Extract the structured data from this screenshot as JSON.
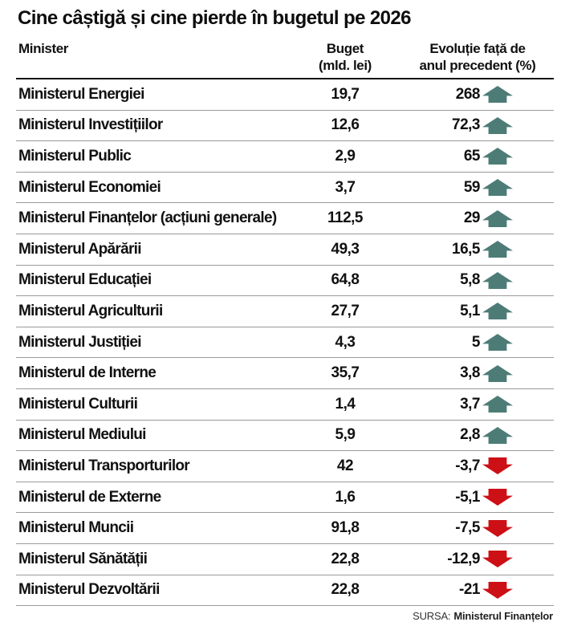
{
  "title": "Cine câștigă și cine pierde în bugetul pe 2026",
  "table": {
    "columns": {
      "minister": "Minister",
      "budget_line1": "Buget",
      "budget_line2": "(mld. lei)",
      "evolution_line1": "Evoluție față de",
      "evolution_line2": "anul precedent (%)"
    },
    "rows": [
      {
        "minister": "Ministerul Energiei",
        "budget": "19,7",
        "evolution": "268",
        "trend": "up"
      },
      {
        "minister": "Ministerul Investițiilor",
        "budget": "12,6",
        "evolution": "72,3",
        "trend": "up"
      },
      {
        "minister": "Ministerul Public",
        "budget": "2,9",
        "evolution": "65",
        "trend": "up"
      },
      {
        "minister": "Ministerul Economiei",
        "budget": "3,7",
        "evolution": "59",
        "trend": "up"
      },
      {
        "minister": "Ministerul Finanțelor (acțiuni generale)",
        "budget": "112,5",
        "evolution": "29",
        "trend": "up"
      },
      {
        "minister": "Ministerul Apărării",
        "budget": "49,3",
        "evolution": "16,5",
        "trend": "up"
      },
      {
        "minister": "Ministerul Educației",
        "budget": "64,8",
        "evolution": "5,8",
        "trend": "up"
      },
      {
        "minister": "Ministerul Agriculturii",
        "budget": "27,7",
        "evolution": "5,1",
        "trend": "up"
      },
      {
        "minister": "Ministerul Justiției",
        "budget": "4,3",
        "evolution": "5",
        "trend": "up"
      },
      {
        "minister": "Ministerul de Interne",
        "budget": "35,7",
        "evolution": "3,8",
        "trend": "up"
      },
      {
        "minister": "Ministerul Culturii",
        "budget": "1,4",
        "evolution": "3,7",
        "trend": "up"
      },
      {
        "minister": "Ministerul Mediului",
        "budget": "5,9",
        "evolution": "2,8",
        "trend": "up"
      },
      {
        "minister": "Ministerul Transporturilor",
        "budget": "42",
        "evolution": "-3,7",
        "trend": "down"
      },
      {
        "minister": "Ministerul de Externe",
        "budget": "1,6",
        "evolution": "-5,1",
        "trend": "down"
      },
      {
        "minister": "Ministerul Muncii",
        "budget": "91,8",
        "evolution": "-7,5",
        "trend": "down"
      },
      {
        "minister": "Ministerul Sănătății",
        "budget": "22,8",
        "evolution": "-12,9",
        "trend": "down"
      },
      {
        "minister": "Ministerul Dezvoltării",
        "budget": "22,8",
        "evolution": "-21",
        "trend": "down"
      }
    ]
  },
  "source": {
    "label": "SURSA:",
    "value": "Ministerul Finanțelor"
  },
  "colors": {
    "up_arrow": "#4d7c77",
    "down_arrow": "#cc1016",
    "row_line": "#9a9a9a",
    "header_line": "#111111"
  },
  "chart_data": {
    "type": "table",
    "title": "Cine câștigă și cine pierde în bugetul pe 2026",
    "columns": [
      "Minister",
      "Buget (mld. lei)",
      "Evoluție față de anul precedent (%)"
    ],
    "rows": [
      [
        "Ministerul Energiei",
        19.7,
        268
      ],
      [
        "Ministerul Investițiilor",
        12.6,
        72.3
      ],
      [
        "Ministerul Public",
        2.9,
        65
      ],
      [
        "Ministerul Economiei",
        3.7,
        59
      ],
      [
        "Ministerul Finanțelor (acțiuni generale)",
        112.5,
        29
      ],
      [
        "Ministerul Apărării",
        49.3,
        16.5
      ],
      [
        "Ministerul Educației",
        64.8,
        5.8
      ],
      [
        "Ministerul Agriculturii",
        27.7,
        5.1
      ],
      [
        "Ministerul Justiției",
        4.3,
        5
      ],
      [
        "Ministerul de Interne",
        35.7,
        3.8
      ],
      [
        "Ministerul Culturii",
        1.4,
        3.7
      ],
      [
        "Ministerul Mediului",
        5.9,
        2.8
      ],
      [
        "Ministerul Transporturilor",
        42,
        -3.7
      ],
      [
        "Ministerul de Externe",
        1.6,
        -5.1
      ],
      [
        "Ministerul Muncii",
        91.8,
        -7.5
      ],
      [
        "Ministerul Sănătății",
        22.8,
        -12.9
      ],
      [
        "Ministerul Dezvoltării",
        22.8,
        -21
      ]
    ],
    "source": "SURSA: Ministerul Finanțelor"
  }
}
